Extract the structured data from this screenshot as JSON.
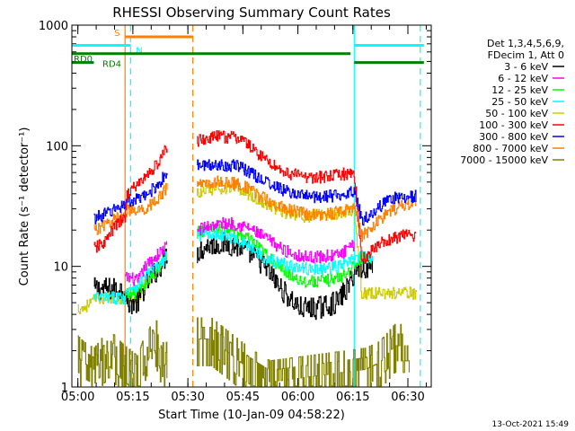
{
  "chart_data": {
    "type": "line",
    "title": "RHESSI Observing Summary Count Rates",
    "xlabel": "Start Time (10-Jan-09 04:58:22)",
    "ylabel": "Count Rate (s⁻¹ detector⁻¹)",
    "xlim": [
      0.0,
      98.0
    ],
    "ylim": [
      1,
      1000
    ],
    "yscale": "log",
    "x_ticks": [
      {
        "value": 1.633,
        "label": "05:00"
      },
      {
        "value": 16.633,
        "label": "05:15"
      },
      {
        "value": 31.633,
        "label": "05:30"
      },
      {
        "value": 46.633,
        "label": "05:45"
      },
      {
        "value": 61.633,
        "label": "06:00"
      },
      {
        "value": 76.633,
        "label": "06:15"
      },
      {
        "value": 91.633,
        "label": "06:30"
      }
    ],
    "y_ticks": [
      {
        "value": 1,
        "label": "1"
      },
      {
        "value": 10,
        "label": "10"
      },
      {
        "value": 100,
        "label": "100"
      },
      {
        "value": 1000,
        "label": "1000"
      }
    ],
    "legend_header": [
      "Det 1,3,4,5,6,9,",
      "FDecim 1, Att 0"
    ],
    "legend_position": "right",
    "timestamp": "13-Oct-2021 15:49",
    "segments": [
      [
        1.6,
        26.0
      ],
      [
        34.0,
        77.0
      ],
      [
        77.0,
        95.0
      ]
    ],
    "series": [
      {
        "name": "3 - 6 keV",
        "color": "#000000",
        "points": [
          [
            6.0,
            6.5
          ],
          [
            9.0,
            6.5
          ],
          [
            12.0,
            6.5
          ],
          [
            14.5,
            6.5
          ],
          [
            15.0,
            5.0
          ],
          [
            18.0,
            5.0
          ],
          [
            20.0,
            7.0
          ],
          [
            24.0,
            10.0
          ],
          [
            25.5,
            12.0
          ],
          [
            26.0,
            13.0
          ],
          [
            34.0,
            13.0
          ],
          [
            37.0,
            15.0
          ],
          [
            42.0,
            15.5
          ],
          [
            47.0,
            14.0
          ],
          [
            52.0,
            10.5
          ],
          [
            57.0,
            6.5
          ],
          [
            62.0,
            4.5
          ],
          [
            67.0,
            4.5
          ],
          [
            72.0,
            5.0
          ],
          [
            75.0,
            6.5
          ],
          [
            77.0,
            9.0
          ],
          [
            79.0,
            10.0
          ],
          [
            82.0,
            10.0
          ]
        ]
      },
      {
        "name": "6 - 12 keV",
        "color": "#ff00ff",
        "points": [
          [
            14.5,
            8.0
          ],
          [
            16.0,
            8.0
          ],
          [
            18.0,
            7.5
          ],
          [
            20.0,
            10.0
          ],
          [
            24.0,
            13.0
          ],
          [
            26.0,
            15.0
          ],
          [
            34.0,
            20.0
          ],
          [
            38.0,
            22.0
          ],
          [
            43.0,
            23.0
          ],
          [
            48.0,
            21.0
          ],
          [
            53.0,
            17.0
          ],
          [
            58.0,
            13.5
          ],
          [
            63.0,
            12.0
          ],
          [
            68.0,
            12.0
          ],
          [
            73.0,
            12.5
          ],
          [
            77.0,
            15.0
          ]
        ]
      },
      {
        "name": "12 - 25 keV",
        "color": "#00ff00",
        "points": [
          [
            14.5,
            6.0
          ],
          [
            17.0,
            6.0
          ],
          [
            20.0,
            7.0
          ],
          [
            24.0,
            10.0
          ],
          [
            26.0,
            12.0
          ],
          [
            34.0,
            19.0
          ],
          [
            38.0,
            21.0
          ],
          [
            43.0,
            20.0
          ],
          [
            48.0,
            17.0
          ],
          [
            53.0,
            12.5
          ],
          [
            58.0,
            9.0
          ],
          [
            63.0,
            7.5
          ],
          [
            68.0,
            7.5
          ],
          [
            73.0,
            8.0
          ],
          [
            77.0,
            10.0
          ],
          [
            79.0,
            12.0
          ],
          [
            82.0,
            12.0
          ]
        ]
      },
      {
        "name": "25 - 50 keV",
        "color": "#00ffff",
        "points": [
          [
            6.0,
            5.5
          ],
          [
            12.0,
            5.5
          ],
          [
            14.5,
            5.5
          ],
          [
            15.0,
            6.5
          ],
          [
            18.0,
            7.0
          ],
          [
            20.0,
            8.5
          ],
          [
            24.0,
            10.5
          ],
          [
            26.0,
            12.0
          ],
          [
            34.0,
            18.0
          ],
          [
            38.0,
            19.0
          ],
          [
            43.0,
            17.5
          ],
          [
            48.0,
            15.0
          ],
          [
            53.0,
            11.5
          ],
          [
            58.0,
            10.5
          ],
          [
            63.0,
            9.5
          ],
          [
            68.0,
            9.5
          ],
          [
            73.0,
            10.0
          ],
          [
            77.0,
            11.5
          ],
          [
            79.0,
            12.0
          ],
          [
            82.0,
            12.0
          ]
        ]
      },
      {
        "name": "50 - 100 keV",
        "color": "#cccc00",
        "points": [
          [
            0.0,
            4.5
          ],
          [
            3.0,
            4.5
          ],
          [
            7.0,
            5.5
          ],
          [
            10.0,
            5.5
          ],
          [
            14.0,
            5.5
          ],
          [
            18.0,
            5.5
          ],
          [
            20.0,
            7.0
          ],
          [
            24.0,
            10.0
          ],
          [
            26.0,
            12.0
          ],
          [
            34.0,
            40.0
          ],
          [
            40.0,
            45.0
          ],
          [
            46.0,
            43.0
          ],
          [
            52.0,
            34.0
          ],
          [
            58.0,
            28.0
          ],
          [
            64.0,
            26.0
          ],
          [
            70.0,
            27.0
          ],
          [
            74.0,
            28.0
          ],
          [
            77.0,
            30.0
          ],
          [
            79.0,
            6.0
          ],
          [
            85.0,
            6.0
          ],
          [
            90.0,
            6.0
          ],
          [
            94.0,
            6.0
          ]
        ]
      },
      {
        "name": "100 - 300 keV",
        "color": "#ff0000",
        "points": [
          [
            6.0,
            14.0
          ],
          [
            9.0,
            16.0
          ],
          [
            12.0,
            22.0
          ],
          [
            14.5,
            25.0
          ],
          [
            15.0,
            40.0
          ],
          [
            17.0,
            45.0
          ],
          [
            20.0,
            55.0
          ],
          [
            24.0,
            75.0
          ],
          [
            26.0,
            100.0
          ],
          [
            34.0,
            110.0
          ],
          [
            40.0,
            120.0
          ],
          [
            46.0,
            115.0
          ],
          [
            52.0,
            80.0
          ],
          [
            58.0,
            60.0
          ],
          [
            64.0,
            55.0
          ],
          [
            70.0,
            55.0
          ],
          [
            74.0,
            58.0
          ],
          [
            77.0,
            60.0
          ],
          [
            79.0,
            11.0
          ],
          [
            82.0,
            14.0
          ],
          [
            85.0,
            16.0
          ],
          [
            90.0,
            18.0
          ],
          [
            94.0,
            18.0
          ]
        ]
      },
      {
        "name": "300 - 800 keV",
        "color": "#0000ff",
        "points": [
          [
            6.0,
            25.0
          ],
          [
            9.0,
            27.0
          ],
          [
            12.0,
            30.0
          ],
          [
            14.5,
            33.0
          ],
          [
            15.0,
            35.0
          ],
          [
            17.0,
            35.0
          ],
          [
            20.0,
            38.0
          ],
          [
            24.0,
            50.0
          ],
          [
            26.0,
            60.0
          ],
          [
            34.0,
            68.0
          ],
          [
            40.0,
            70.0
          ],
          [
            46.0,
            67.0
          ],
          [
            52.0,
            52.0
          ],
          [
            58.0,
            42.0
          ],
          [
            64.0,
            38.0
          ],
          [
            70.0,
            38.0
          ],
          [
            74.0,
            40.0
          ],
          [
            77.0,
            43.0
          ],
          [
            79.0,
            24.0
          ],
          [
            82.0,
            28.0
          ],
          [
            86.0,
            35.0
          ],
          [
            90.0,
            38.0
          ],
          [
            94.0,
            38.0
          ]
        ]
      },
      {
        "name": "800 - 7000 keV",
        "color": "#ff8000",
        "points": [
          [
            6.0,
            20.0
          ],
          [
            9.0,
            22.0
          ],
          [
            12.0,
            25.0
          ],
          [
            14.5,
            27.0
          ],
          [
            15.0,
            30.0
          ],
          [
            17.0,
            28.0
          ],
          [
            20.0,
            30.0
          ],
          [
            24.0,
            38.0
          ],
          [
            26.0,
            45.0
          ],
          [
            34.0,
            48.0
          ],
          [
            40.0,
            50.0
          ],
          [
            46.0,
            48.0
          ],
          [
            52.0,
            37.0
          ],
          [
            58.0,
            30.0
          ],
          [
            64.0,
            27.0
          ],
          [
            70.0,
            27.0
          ],
          [
            74.0,
            29.0
          ],
          [
            77.0,
            32.0
          ],
          [
            79.0,
            18.0
          ],
          [
            82.0,
            21.0
          ],
          [
            86.0,
            28.0
          ],
          [
            90.0,
            32.0
          ],
          [
            94.0,
            34.0
          ]
        ]
      },
      {
        "name": "7000 - 15000 keV",
        "color": "#808000",
        "points": [
          [
            0.0,
            2.0
          ],
          [
            3.0,
            1.6
          ],
          [
            6.0,
            1.4
          ],
          [
            10.0,
            2.0
          ],
          [
            14.0,
            1.5
          ],
          [
            18.0,
            1.2
          ],
          [
            22.0,
            3.0
          ],
          [
            25.0,
            1.5
          ],
          [
            34.0,
            2.5
          ],
          [
            38.0,
            2.5
          ],
          [
            42.0,
            2.0
          ],
          [
            46.0,
            1.6
          ],
          [
            50.0,
            1.3
          ],
          [
            54.0,
            1.1
          ],
          [
            80.0,
            1.4
          ],
          [
            84.0,
            1.6
          ],
          [
            88.0,
            2.2
          ],
          [
            92.0,
            2.2
          ]
        ]
      }
    ],
    "flags": [
      {
        "label": "S",
        "color": "#ff8000",
        "x": [
          14.5,
          33.0
        ],
        "y": 800
      },
      {
        "label": "N",
        "color": "#00ffff",
        "x": [
          -1.0,
          16.0
        ],
        "y": 680
      },
      {
        "label": "",
        "color": "#00ffff",
        "x": [
          77.0,
          96.0
        ],
        "y": 680
      },
      {
        "label": "RD0",
        "color": "#008000",
        "x": [
          -1.0,
          76.0
        ],
        "y": 580
      },
      {
        "label": "RD4",
        "color": "#008000",
        "x": [
          -1.0,
          6.0
        ],
        "y": 490
      },
      {
        "label": "",
        "color": "#008000",
        "x": [
          77.0,
          96.0
        ],
        "y": 490
      }
    ],
    "vlines": [
      {
        "x": 14.5,
        "color": "#ff8000",
        "dash": false
      },
      {
        "x": 16.0,
        "color": "#00ffff",
        "dash": true
      },
      {
        "x": 33.0,
        "color": "#ff8000",
        "dash": true
      },
      {
        "x": 77.0,
        "color": "#00ffff",
        "dash": false
      },
      {
        "x": 95.0,
        "color": "#00ffff",
        "dash": true
      }
    ]
  }
}
